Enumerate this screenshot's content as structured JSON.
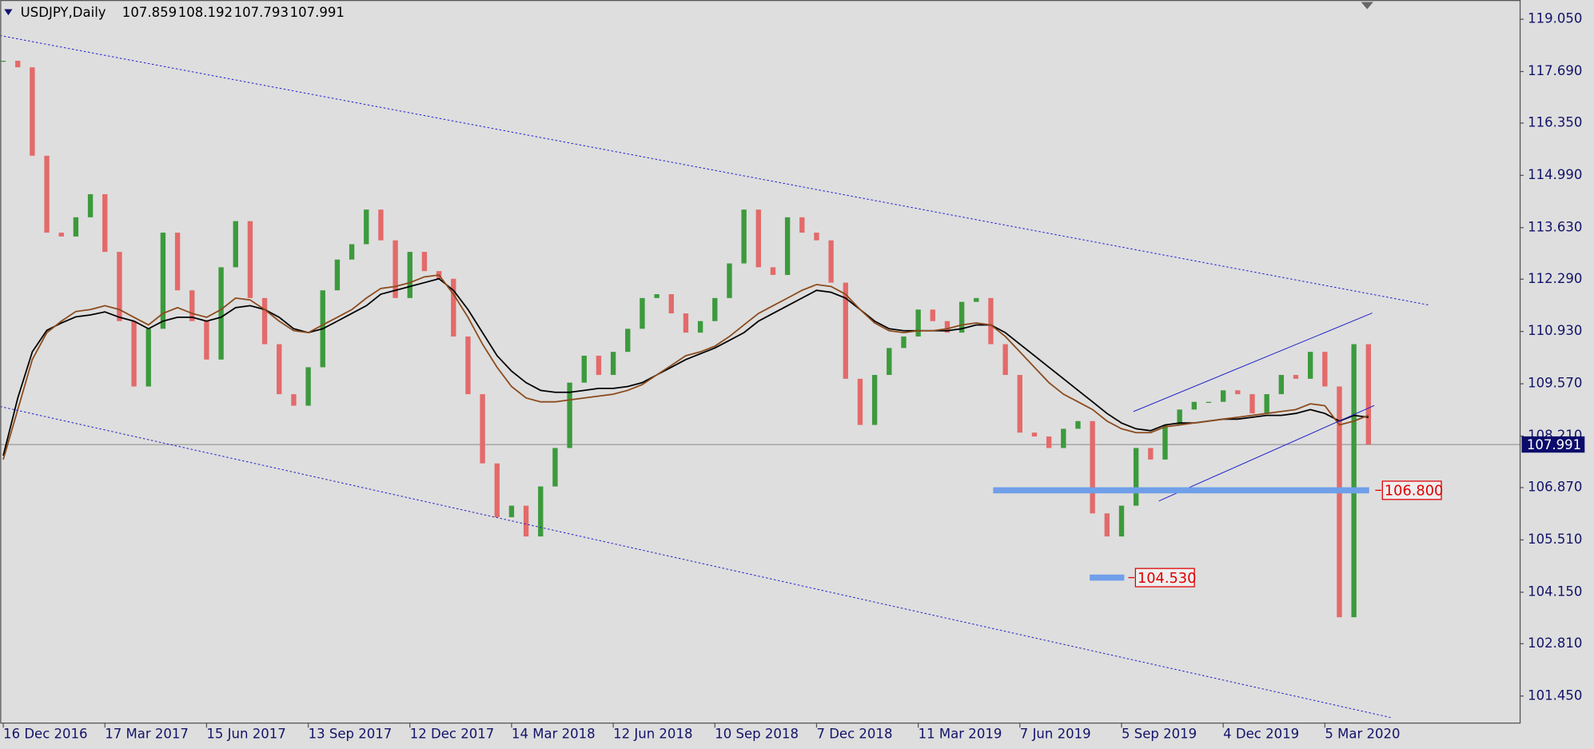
{
  "chart_data": {
    "type": "candlestick",
    "title": "USDJPY,Daily",
    "ohlc": [
      107.859,
      108.192,
      107.793,
      107.991
    ],
    "last_price": 107.991,
    "categories": [
      "16 Dec 2016",
      null,
      null,
      null,
      null,
      null,
      null,
      "17 Mar 2017",
      null,
      null,
      null,
      null,
      null,
      null,
      "15 Jun 2017",
      null,
      null,
      null,
      null,
      null,
      null,
      "13 Sep 2017",
      null,
      null,
      null,
      null,
      null,
      null,
      "12 Dec 2017",
      null,
      null,
      null,
      null,
      null,
      null,
      "14 Mar 2018",
      null,
      null,
      null,
      null,
      null,
      null,
      "12 Jun 2018",
      null,
      null,
      null,
      null,
      null,
      null,
      "10 Sep 2018",
      null,
      null,
      null,
      null,
      null,
      null,
      "7 Dec 2018",
      null,
      null,
      null,
      null,
      null,
      null,
      "11 Mar 2019",
      null,
      null,
      null,
      null,
      null,
      null,
      "7 Jun 2019",
      null,
      null,
      null,
      null,
      null,
      null,
      "5 Sep 2019",
      null,
      null,
      null,
      null,
      null,
      null,
      "4 Dec 2019",
      null,
      null,
      null,
      null,
      null,
      null,
      "5 Mar 2020",
      null,
      null,
      null
    ],
    "values": [
      117.97,
      117.8,
      115.5,
      113.5,
      113.4,
      113.9,
      114.5,
      113.0,
      111.2,
      109.5,
      111.0,
      113.5,
      112.0,
      111.2,
      110.2,
      112.6,
      113.8,
      111.8,
      110.6,
      109.3,
      109.0,
      110.0,
      112.0,
      112.8,
      113.2,
      114.1,
      113.3,
      111.8,
      113.0,
      112.5,
      112.3,
      110.8,
      109.3,
      107.5,
      106.1,
      106.4,
      105.6,
      106.9,
      107.9,
      109.6,
      110.3,
      109.8,
      110.4,
      111.0,
      111.8,
      111.9,
      111.4,
      110.9,
      111.2,
      111.8,
      112.7,
      114.1,
      112.6,
      112.4,
      113.9,
      113.5,
      113.3,
      112.2,
      109.7,
      108.5,
      109.8,
      110.5,
      110.8,
      111.5,
      111.2,
      110.9,
      111.7,
      111.8,
      110.6,
      109.8,
      108.3,
      108.2,
      107.9,
      108.4,
      108.6,
      106.2,
      105.6,
      106.4,
      107.9,
      107.6,
      108.5,
      108.9,
      109.1,
      109.1,
      109.4,
      109.3,
      108.8,
      109.3,
      109.8,
      109.7,
      110.4,
      109.5,
      103.5,
      110.6,
      107.991
    ],
    "up_color": "#3c9a3c",
    "down_color": "#e46a6a",
    "moving_averages": [
      {
        "color": "#000000",
        "values": [
          107.7,
          109.2,
          110.4,
          110.96,
          111.15,
          111.31,
          111.36,
          111.44,
          111.3,
          111.2,
          111.0,
          111.2,
          111.3,
          111.3,
          111.2,
          111.3,
          111.55,
          111.6,
          111.5,
          111.3,
          111.0,
          110.9,
          111.0,
          111.2,
          111.4,
          111.6,
          111.9,
          112.0,
          112.1,
          112.2,
          112.3,
          112.0,
          111.5,
          110.9,
          110.3,
          109.9,
          109.6,
          109.4,
          109.35,
          109.35,
          109.4,
          109.45,
          109.45,
          109.5,
          109.6,
          109.8,
          110.0,
          110.2,
          110.35,
          110.5,
          110.7,
          110.9,
          111.2,
          111.4,
          111.6,
          111.8,
          112.0,
          111.95,
          111.8,
          111.5,
          111.2,
          111.0,
          110.95,
          110.95,
          110.95,
          110.95,
          111.0,
          111.1,
          111.1,
          110.9,
          110.6,
          110.3,
          110.0,
          109.7,
          109.4,
          109.1,
          108.8,
          108.55,
          108.4,
          108.35,
          108.5,
          108.55,
          108.55,
          108.6,
          108.65,
          108.65,
          108.7,
          108.75,
          108.75,
          108.8,
          108.9,
          108.8,
          108.6,
          108.75,
          108.7
        ]
      },
      {
        "color": "#8b4a1c",
        "values": [
          107.6,
          108.9,
          110.2,
          110.9,
          111.2,
          111.45,
          111.5,
          111.6,
          111.5,
          111.3,
          111.1,
          111.4,
          111.55,
          111.4,
          111.3,
          111.5,
          111.8,
          111.75,
          111.5,
          111.2,
          110.95,
          110.9,
          111.1,
          111.3,
          111.5,
          111.8,
          112.05,
          112.1,
          112.2,
          112.35,
          112.4,
          111.9,
          111.3,
          110.6,
          110.0,
          109.5,
          109.2,
          109.1,
          109.1,
          109.15,
          109.2,
          109.25,
          109.3,
          109.4,
          109.55,
          109.8,
          110.05,
          110.3,
          110.4,
          110.55,
          110.8,
          111.1,
          111.4,
          111.6,
          111.8,
          112.0,
          112.15,
          112.1,
          111.9,
          111.5,
          111.15,
          110.95,
          110.9,
          110.95,
          110.95,
          111.0,
          111.1,
          111.15,
          111.1,
          110.8,
          110.4,
          110.0,
          109.6,
          109.3,
          109.1,
          108.9,
          108.6,
          108.4,
          108.3,
          108.3,
          108.45,
          108.5,
          108.55,
          108.6,
          108.65,
          108.7,
          108.75,
          108.8,
          108.85,
          108.9,
          109.05,
          109.0,
          108.5,
          108.6,
          108.75
        ]
      }
    ],
    "levels": [
      {
        "value": 106.8,
        "label": "106.800",
        "color": "#6f9fe8"
      },
      {
        "value": 104.53,
        "label": "104.530",
        "color": "#6f9fe8"
      }
    ],
    "ylim": [
      100.76,
      119.55
    ],
    "yticks": [
      {
        "value": 119.05,
        "label": "119.050"
      },
      {
        "value": 117.69,
        "label": "117.690"
      },
      {
        "value": 116.35,
        "label": "116.350"
      },
      {
        "value": 114.99,
        "label": "114.990"
      },
      {
        "value": 113.63,
        "label": "113.630"
      },
      {
        "value": 112.29,
        "label": "112.290"
      },
      {
        "value": 110.93,
        "label": "110.930"
      },
      {
        "value": 109.57,
        "label": "109.570"
      },
      {
        "value": 108.21,
        "label": "108.210"
      },
      {
        "value": 106.87,
        "label": "106.870"
      },
      {
        "value": 105.51,
        "label": "105.510"
      },
      {
        "value": 104.15,
        "label": "104.150"
      },
      {
        "value": 102.81,
        "label": "102.810"
      },
      {
        "value": 101.45,
        "label": "101.450"
      }
    ],
    "grid": false
  }
}
